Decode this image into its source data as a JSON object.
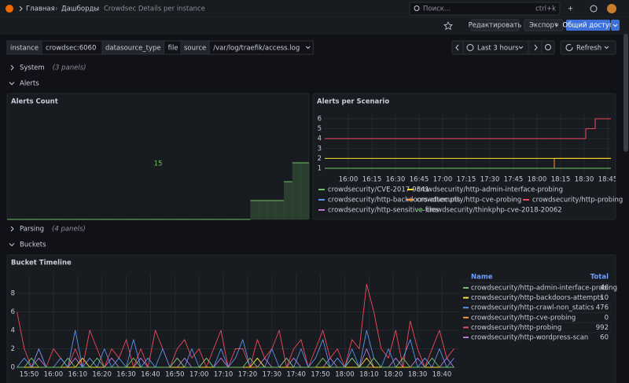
{
  "header": {
    "breadcrumbs": [
      "Главная",
      "Дашборды",
      "Crowdsec Details per instance"
    ],
    "search": "Поиск...",
    "shortcut": "ctrl+k"
  },
  "toolbar": {
    "edit": "Редактировать",
    "export": "Экспорт",
    "share": "Общий доступ"
  },
  "variables": [
    {
      "label": "instance",
      "value": "crowdsec:6060"
    },
    {
      "label": "datasource_type",
      "value": "file"
    },
    {
      "label": "source",
      "value": "/var/log/traefik/access.log"
    }
  ],
  "time_range": "Last 3 hours",
  "refresh": "Refresh",
  "rows": [
    {
      "title": "System",
      "panels": "(3 panels)"
    },
    {
      "title": "Alerts"
    },
    {
      "title": "Parsing",
      "panels": "(4 panels)"
    },
    {
      "title": "Buckets"
    }
  ],
  "stat": {
    "title": "Alerts Count",
    "value": 15,
    "color": "#73bf69",
    "sparkline": [
      0,
      0,
      0,
      0,
      0,
      0,
      0,
      0,
      0,
      0,
      0,
      0,
      0,
      0,
      0,
      0,
      0,
      0,
      0,
      0,
      0,
      0,
      0,
      0,
      0,
      0,
      0,
      0,
      0,
      1,
      1,
      1,
      1,
      2,
      3,
      3
    ]
  },
  "chart_data": [
    {
      "type": "line",
      "title": "Alerts per Scenario",
      "line_interpolation": "stepAfter",
      "x": [
        "15:45",
        "18:10",
        "18:11",
        "18:31",
        "18:37"
      ],
      "xlim": [
        "15:45",
        "18:47"
      ],
      "xticks": [
        "16:00",
        "16:15",
        "16:30",
        "16:45",
        "17:00",
        "17:15",
        "17:30",
        "17:45",
        "18:00",
        "18:15",
        "18:30",
        "18:45"
      ],
      "ylim": [
        0.5,
        6.5
      ],
      "yticks": [
        1,
        2,
        3,
        4,
        5,
        6
      ],
      "grid": true,
      "series": [
        {
          "name": "crowdsecurity/CVE-2017-9841",
          "color": "#73bf69",
          "values": [
            1,
            1,
            1,
            1,
            1
          ]
        },
        {
          "name": "crowdsecurity/http-admin-interface-probing",
          "color": "#fade2a",
          "values": [
            2,
            2,
            2,
            2,
            2
          ]
        },
        {
          "name": "crowdsecurity/http-backdoors-attempts",
          "color": "#5794f2",
          "values": [
            1,
            1,
            1,
            1,
            1
          ]
        },
        {
          "name": "crowdsecurity/http-cve-probing",
          "color": "#ff9830",
          "values": [
            null,
            1,
            2,
            2,
            2
          ]
        },
        {
          "name": "crowdsecurity/http-probing",
          "color": "#f2495c",
          "values": [
            4,
            4,
            4,
            5,
            6
          ]
        },
        {
          "name": "crowdsecurity/http-sensitive-files",
          "color": "#b877d9",
          "values": [
            1,
            1,
            1,
            1,
            1
          ]
        },
        {
          "name": "crowdsecurity/thinkphp-cve-2018-20062",
          "color": "#37872d",
          "values": [
            1,
            1,
            1,
            1,
            1
          ]
        }
      ]
    },
    {
      "type": "line",
      "title": "Bucket Timeline",
      "x": [
        "15:45",
        "15:48",
        "15:51",
        "15:54",
        "15:57",
        "16:00",
        "16:03",
        "16:06",
        "16:09",
        "16:12",
        "16:15",
        "16:18",
        "16:21",
        "16:24",
        "16:27",
        "16:30",
        "16:33",
        "16:36",
        "16:39",
        "16:42",
        "16:45",
        "16:48",
        "16:51",
        "16:54",
        "16:57",
        "17:00",
        "17:03",
        "17:06",
        "17:09",
        "17:12",
        "17:15",
        "17:18",
        "17:21",
        "17:24",
        "17:27",
        "17:30",
        "17:33",
        "17:36",
        "17:39",
        "17:42",
        "17:45",
        "17:48",
        "17:51",
        "17:54",
        "17:57",
        "18:00",
        "18:03",
        "18:06",
        "18:09",
        "18:12",
        "18:15",
        "18:18",
        "18:21",
        "18:24",
        "18:27",
        "18:30",
        "18:33",
        "18:36",
        "18:39",
        "18:42",
        "18:45"
      ],
      "xlim": [
        "15:45",
        "18:47"
      ],
      "xticks": [
        "15:50",
        "16:00",
        "16:10",
        "16:20",
        "16:30",
        "16:40",
        "16:50",
        "17:00",
        "17:10",
        "17:20",
        "17:30",
        "17:40",
        "17:50",
        "18:00",
        "18:10",
        "18:20",
        "18:30",
        "18:40"
      ],
      "ylim": [
        0,
        10
      ],
      "yticks": [
        0,
        2,
        4,
        6,
        8
      ],
      "grid": true,
      "legend_header": [
        "Name",
        "Total"
      ],
      "series": [
        {
          "name": "crowdsecurity/http-admin-interface-probing",
          "color": "#73bf69",
          "total": 46,
          "values": [
            0,
            0,
            1,
            0,
            0,
            0,
            0,
            1,
            0,
            0,
            0,
            1,
            0,
            0,
            0,
            0,
            1,
            0,
            0,
            0,
            0,
            0,
            1,
            0,
            0,
            0,
            1,
            0,
            0,
            0,
            0,
            0,
            1,
            0,
            0,
            0,
            0,
            1,
            0,
            0,
            0,
            0,
            1,
            0,
            0,
            0,
            1,
            0,
            0,
            1,
            0,
            0,
            0,
            1,
            0,
            0,
            0,
            1,
            0,
            0,
            0
          ]
        },
        {
          "name": "crowdsecurity/http-backdoors-attempts",
          "color": "#fade2a",
          "total": 10,
          "values": [
            0,
            0,
            0,
            0,
            0,
            0,
            0,
            0,
            0,
            1,
            0,
            0,
            0,
            0,
            0,
            0,
            0,
            0,
            0,
            0,
            0,
            0,
            0,
            0,
            0,
            0,
            0,
            0,
            0,
            0,
            0,
            0,
            0,
            1,
            0,
            0,
            0,
            0,
            0,
            0,
            0,
            0,
            0,
            0,
            0,
            0,
            0,
            0,
            1,
            0,
            0,
            0,
            0,
            0,
            0,
            0,
            0,
            0,
            0,
            0,
            0
          ]
        },
        {
          "name": "crowdsecurity/http-crawl-non_statics",
          "color": "#5794f2",
          "total": 476,
          "values": [
            0,
            1,
            0,
            2,
            0,
            0,
            1,
            0,
            4,
            0,
            1,
            0,
            2,
            0,
            1,
            0,
            3,
            0,
            1,
            0,
            2,
            0,
            1,
            0,
            2,
            0,
            1,
            0,
            2,
            0,
            1,
            3,
            0,
            1,
            0,
            2,
            0,
            1,
            0,
            2,
            0,
            1,
            3,
            0,
            1,
            0,
            2,
            0,
            4,
            1,
            0,
            2,
            0,
            1,
            3,
            0,
            1,
            0,
            2,
            0,
            1
          ]
        },
        {
          "name": "crowdsecurity/http-cve-probing",
          "color": "#ff9830",
          "total": 0,
          "values": [
            0,
            0,
            0,
            0,
            0,
            0,
            0,
            0,
            0,
            0,
            0,
            0,
            0,
            0,
            0,
            0,
            0,
            0,
            0,
            0,
            0,
            0,
            0,
            0,
            0,
            0,
            0,
            0,
            0,
            0,
            0,
            0,
            0,
            0,
            0,
            0,
            0,
            0,
            0,
            0,
            0,
            0,
            0,
            0,
            0,
            0,
            0,
            0,
            0,
            0,
            0,
            0,
            0,
            0,
            0,
            0,
            0,
            0,
            0,
            0,
            0
          ]
        },
        {
          "name": "crowdsecurity/http-probing",
          "color": "#f2495c",
          "total": 992,
          "values": [
            6,
            2,
            0,
            2,
            0,
            2,
            1,
            0,
            2,
            0,
            4,
            2,
            0,
            2,
            1,
            3,
            0,
            2,
            0,
            4,
            2,
            0,
            2,
            3,
            1,
            2,
            0,
            2,
            4,
            0,
            2,
            2,
            0,
            3,
            1,
            2,
            4,
            0,
            2,
            3,
            0,
            2,
            4,
            1,
            2,
            0,
            3,
            2,
            9,
            6,
            2,
            1,
            4,
            0,
            5,
            2,
            0,
            2,
            4,
            1,
            2
          ]
        },
        {
          "name": "crowdsecurity/http-wordpress-scan",
          "color": "#b877d9",
          "total": 60,
          "values": [
            0,
            0,
            0,
            1,
            0,
            0,
            0,
            0,
            1,
            0,
            0,
            0,
            0,
            1,
            0,
            0,
            0,
            1,
            0,
            0,
            0,
            0,
            0,
            1,
            0,
            0,
            0,
            0,
            1,
            0,
            0,
            0,
            0,
            0,
            1,
            0,
            0,
            0,
            1,
            0,
            0,
            0,
            0,
            1,
            0,
            0,
            1,
            0,
            2,
            0,
            0,
            0,
            1,
            0,
            0,
            1,
            0,
            0,
            0,
            1,
            0
          ]
        }
      ]
    }
  ]
}
